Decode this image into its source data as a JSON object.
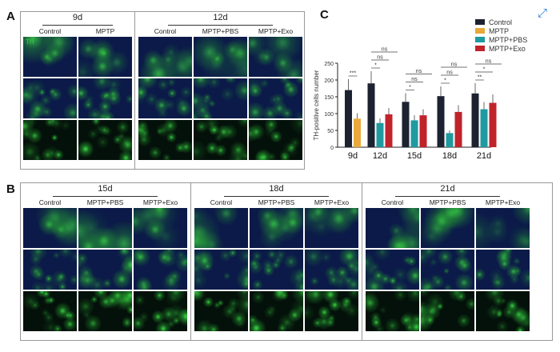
{
  "viewer": {
    "expand_icon": "expand-arrows-icon"
  },
  "panel_a": {
    "label": "A",
    "channel_label": "TH",
    "groups": [
      {
        "title": "9d",
        "columns": [
          "Control",
          "MPTP"
        ]
      },
      {
        "title": "12d",
        "columns": [
          "Control",
          "MPTP+PBS",
          "MPTP+Exo"
        ]
      }
    ]
  },
  "panel_b": {
    "label": "B",
    "groups": [
      {
        "title": "15d",
        "columns": [
          "Control",
          "MPTP+PBS",
          "MPTP+Exo"
        ]
      },
      {
        "title": "18d",
        "columns": [
          "Control",
          "MPTP+PBS",
          "MPTP+Exo"
        ]
      },
      {
        "title": "21d",
        "columns": [
          "Control",
          "MPTP+PBS",
          "MPTP+Exo"
        ]
      }
    ]
  },
  "panel_c": {
    "label": "C"
  },
  "chart_data": {
    "type": "bar",
    "title": "",
    "ylabel": "TH-positive cells number",
    "xlabel": "",
    "ylim": [
      0,
      250
    ],
    "yticks": [
      0,
      50,
      100,
      150,
      200,
      250
    ],
    "categories": [
      "9d",
      "12d",
      "15d",
      "18d",
      "21d"
    ],
    "legend_position": "top-right",
    "series": [
      {
        "name": "Control",
        "color": "#1c2230",
        "values": [
          170,
          190,
          135,
          152,
          160
        ]
      },
      {
        "name": "MPTP",
        "color": "#e8a93a",
        "values": [
          85,
          null,
          null,
          null,
          null
        ]
      },
      {
        "name": "MPTP+PBS",
        "color": "#1f9aa0",
        "values": [
          null,
          72,
          80,
          42,
          113
        ]
      },
      {
        "name": "MPTP+Exo",
        "color": "#c1232b",
        "values": [
          null,
          98,
          95,
          105,
          132
        ]
      }
    ],
    "annotations": [
      {
        "category": "9d",
        "marks": [
          "***"
        ]
      },
      {
        "category": "12d",
        "marks": [
          "*",
          "ns",
          "ns"
        ]
      },
      {
        "category": "15d",
        "marks": [
          "*",
          "ns",
          "ns"
        ]
      },
      {
        "category": "18d",
        "marks": [
          "*",
          "ns",
          "ns"
        ]
      },
      {
        "category": "21d",
        "marks": [
          "**",
          "*",
          "ns"
        ]
      }
    ]
  }
}
